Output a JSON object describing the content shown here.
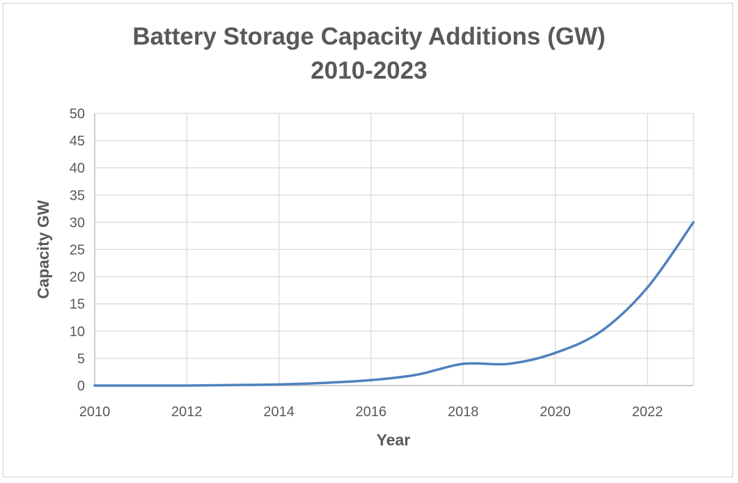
{
  "chart_data": {
    "type": "line",
    "title": "Battery Storage Capacity Additions (GW)",
    "subtitle": "2010-2023",
    "xlabel": "Year",
    "ylabel": "Capacity GW",
    "xlim": [
      2010,
      2023
    ],
    "ylim": [
      0,
      50
    ],
    "x_ticks": [
      "2010",
      "2012",
      "2014",
      "2016",
      "2018",
      "2020",
      "2022"
    ],
    "y_ticks": [
      "0",
      "5",
      "10",
      "15",
      "20",
      "25",
      "30",
      "35",
      "40",
      "45",
      "50"
    ],
    "grid": true,
    "legend": "none",
    "series": [
      {
        "color": "#4F81BD",
        "x": [
          2010,
          2011,
          2012,
          2013,
          2014,
          2015,
          2016,
          2017,
          2018,
          2019,
          2020,
          2021,
          2022,
          2023
        ],
        "values": [
          0,
          0,
          0,
          0.1,
          0.2,
          0.5,
          1.0,
          2.0,
          4.0,
          4.0,
          6.0,
          10.0,
          18.0,
          30.0
        ]
      }
    ]
  }
}
